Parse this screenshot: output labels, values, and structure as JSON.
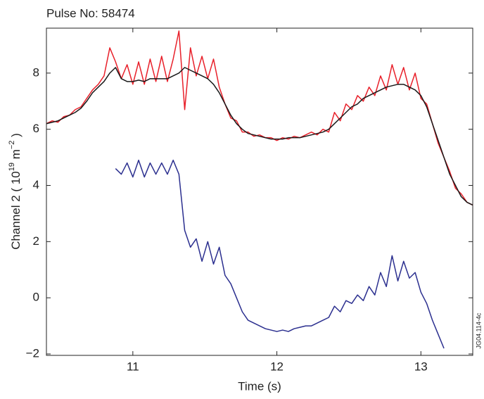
{
  "chart_data": {
    "type": "line",
    "title": "Pulse No: 58474",
    "x_label": "Time (s)",
    "y_label": [
      "Channel 2 ( 10",
      "19",
      " m",
      "−2",
      " )"
    ],
    "annotation": "JG04.114-4c",
    "xlim": [
      10.4,
      13.36
    ],
    "xticks": [
      11,
      12,
      13
    ],
    "ylim": [
      -2.05,
      9.6
    ],
    "yticks": [
      {
        "value": -2,
        "label": "−2"
      },
      0,
      2,
      4,
      6,
      8
    ],
    "x": [
      10.4,
      10.44,
      10.48,
      10.52,
      10.56,
      10.6,
      10.64,
      10.68,
      10.72,
      10.76,
      10.8,
      10.84,
      10.88,
      10.92,
      10.96,
      11.0,
      11.04,
      11.08,
      11.12,
      11.16,
      11.2,
      11.24,
      11.28,
      11.32,
      11.36,
      11.4,
      11.44,
      11.48,
      11.52,
      11.56,
      11.6,
      11.64,
      11.68,
      11.72,
      11.76,
      11.8,
      11.84,
      11.88,
      11.92,
      11.96,
      12.0,
      12.04,
      12.08,
      12.12,
      12.16,
      12.2,
      12.24,
      12.28,
      12.32,
      12.36,
      12.4,
      12.44,
      12.48,
      12.52,
      12.56,
      12.6,
      12.64,
      12.68,
      12.72,
      12.76,
      12.8,
      12.84,
      12.88,
      12.92,
      12.96,
      13.0,
      13.04,
      13.08,
      13.12,
      13.16,
      13.2,
      13.24,
      13.28,
      13.32,
      13.36
    ],
    "series": [
      {
        "color": "#e8202a",
        "values": [
          6.2,
          6.3,
          6.25,
          6.45,
          6.5,
          6.7,
          6.8,
          7.1,
          7.4,
          7.6,
          7.9,
          8.9,
          8.4,
          7.8,
          8.3,
          7.6,
          8.4,
          7.6,
          8.5,
          7.7,
          8.6,
          7.7,
          8.5,
          9.5,
          6.7,
          8.9,
          7.9,
          8.6,
          7.8,
          8.5,
          7.5,
          6.9,
          6.4,
          6.3,
          5.9,
          5.9,
          5.75,
          5.8,
          5.7,
          5.7,
          5.6,
          5.7,
          5.65,
          5.75,
          5.7,
          5.8,
          5.9,
          5.8,
          6.0,
          5.9,
          6.6,
          6.3,
          6.9,
          6.7,
          7.2,
          7.0,
          7.5,
          7.2,
          7.9,
          7.4,
          8.3,
          7.6,
          8.2,
          7.4,
          8.0,
          7.1,
          6.9,
          6.2,
          5.5,
          5.0,
          4.5,
          3.9,
          3.7,
          3.4,
          3.3
        ]
      },
      {
        "color": "#2b2f8f",
        "values": [
          null,
          null,
          null,
          null,
          null,
          null,
          null,
          null,
          null,
          null,
          null,
          null,
          4.6,
          4.4,
          4.8,
          4.3,
          4.9,
          4.3,
          4.8,
          4.4,
          4.8,
          4.4,
          4.9,
          4.4,
          2.4,
          1.8,
          2.1,
          1.3,
          2.0,
          1.2,
          1.8,
          0.8,
          0.5,
          0.0,
          -0.5,
          -0.8,
          -0.9,
          -1.0,
          -1.1,
          -1.15,
          -1.2,
          -1.15,
          -1.2,
          -1.1,
          -1.05,
          -1.0,
          -1.0,
          -0.9,
          -0.8,
          -0.7,
          -0.3,
          -0.5,
          -0.1,
          -0.2,
          0.1,
          -0.1,
          0.4,
          0.1,
          0.9,
          0.4,
          1.5,
          0.6,
          1.3,
          0.7,
          0.9,
          0.2,
          -0.2,
          -0.8,
          -1.3,
          -1.8,
          null,
          null,
          null,
          null,
          null
        ]
      },
      {
        "color": "#1a1a1a",
        "values": [
          6.2,
          6.25,
          6.3,
          6.4,
          6.5,
          6.6,
          6.75,
          7.0,
          7.3,
          7.5,
          7.7,
          8.0,
          8.2,
          7.8,
          7.7,
          7.7,
          7.75,
          7.7,
          7.8,
          7.8,
          7.8,
          7.8,
          7.9,
          8.0,
          8.2,
          8.1,
          8.0,
          7.9,
          7.8,
          7.6,
          7.3,
          6.9,
          6.5,
          6.2,
          6.0,
          5.85,
          5.8,
          5.75,
          5.7,
          5.65,
          5.65,
          5.65,
          5.7,
          5.7,
          5.7,
          5.75,
          5.8,
          5.85,
          5.9,
          6.0,
          6.2,
          6.4,
          6.6,
          6.8,
          6.9,
          7.1,
          7.2,
          7.3,
          7.4,
          7.5,
          7.55,
          7.6,
          7.6,
          7.5,
          7.4,
          7.2,
          6.8,
          6.2,
          5.6,
          5.0,
          4.4,
          4.0,
          3.6,
          3.4,
          3.3
        ]
      }
    ]
  }
}
